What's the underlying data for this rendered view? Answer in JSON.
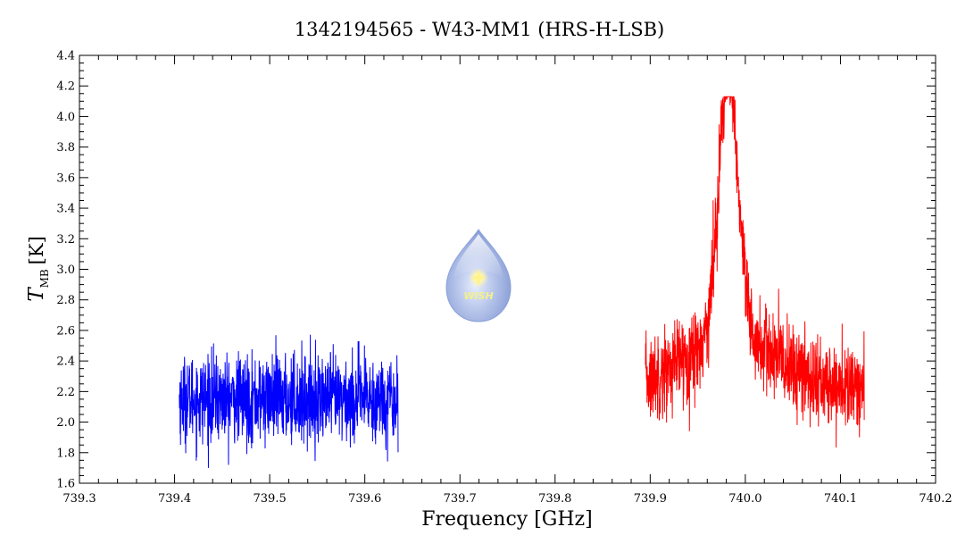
{
  "chart_data": {
    "type": "line",
    "title": "1342194565 - W43-MM1 (HRS-H-LSB)",
    "xlabel": "Frequency [GHz]",
    "ylabel_main": "T",
    "ylabel_sub": "MB",
    "ylabel_unit": "[K]",
    "xlim": [
      739.3,
      740.2
    ],
    "ylim": [
      1.6,
      4.4
    ],
    "x_ticks": [
      "739.3",
      "739.4",
      "739.5",
      "739.6",
      "739.7",
      "739.8",
      "739.9",
      "740.0",
      "740.1",
      "740.2"
    ],
    "y_ticks": [
      "1.6",
      "1.8",
      "2.0",
      "2.2",
      "2.4",
      "2.6",
      "2.8",
      "3.0",
      "3.2",
      "3.4",
      "3.6",
      "3.8",
      "4.0",
      "4.2",
      "4.4"
    ],
    "grid": false,
    "series": [
      {
        "color": "#0000ff",
        "x_range": [
          739.405,
          739.635
        ],
        "baseline": 2.15,
        "noise_amplitude": 0.45,
        "y_min": 1.7,
        "y_max": 2.6,
        "peaks": []
      },
      {
        "color": "#ff0000",
        "x_range": [
          739.895,
          740.125
        ],
        "baseline": 2.2,
        "noise_amplitude": 0.45,
        "y_min": 1.72,
        "y_max": 4.13,
        "peaks": [
          {
            "center": 739.982,
            "amplitude": 1.75,
            "width": 0.01
          },
          {
            "center": 739.985,
            "amplitude": 0.35,
            "width": 0.05
          }
        ]
      }
    ]
  },
  "logo": {
    "text": "WISH",
    "colors": {
      "drop": "#9fb3e0",
      "drop_dark": "#7088c8",
      "star": "#fff38a"
    }
  }
}
